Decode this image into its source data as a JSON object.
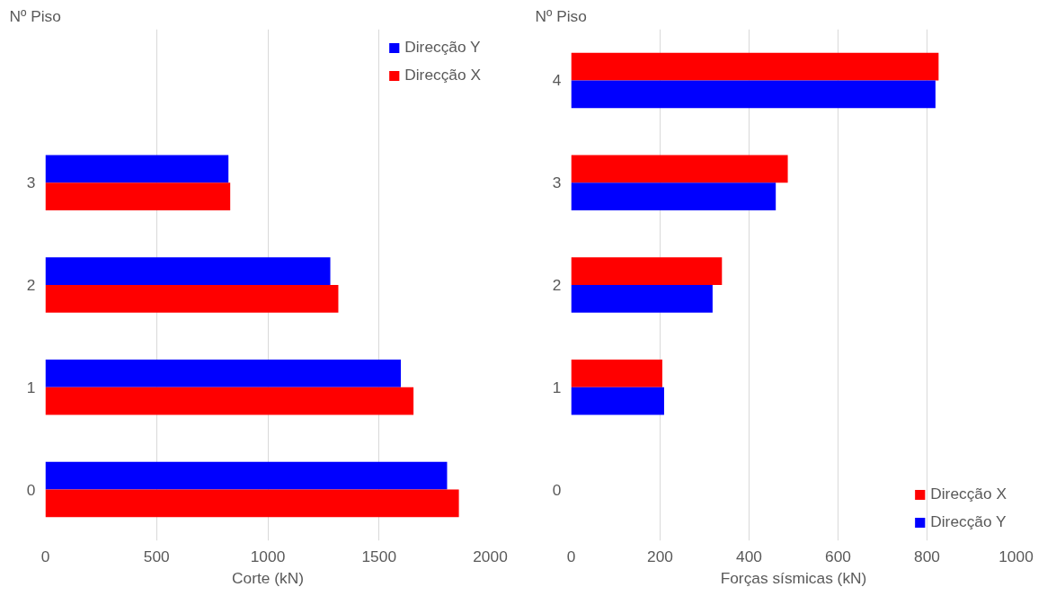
{
  "chart_data": [
    {
      "type": "bar",
      "orientation": "horizontal",
      "ylabel": "Nº Piso",
      "xlabel": "Corte (kN)",
      "categories": [
        null,
        "3",
        "2",
        "1",
        "0"
      ],
      "series": [
        {
          "name": "Direcção Y",
          "color": "#0000ff",
          "values": [
            null,
            823,
            1281,
            1598,
            1806
          ]
        },
        {
          "name": "Direcção X",
          "color": "#ff0000",
          "values": [
            null,
            831,
            1317,
            1655,
            1859
          ]
        }
      ],
      "xlim": [
        0,
        2000
      ],
      "xticks": [
        0,
        500,
        1000,
        1500,
        2000
      ],
      "grid": "x",
      "legend": "top right"
    },
    {
      "type": "bar",
      "orientation": "horizontal",
      "ylabel": "Nº Piso",
      "xlabel": "Forças sísmicas (kN)",
      "categories": [
        "4",
        "3",
        "2",
        "1",
        "0"
      ],
      "series": [
        {
          "name": "Direcção X",
          "color": "#ff0000",
          "values": [
            826,
            487,
            339,
            205,
            null
          ]
        },
        {
          "name": "Direcção Y",
          "color": "#0000ff",
          "values": [
            819,
            460,
            318,
            209,
            null
          ]
        }
      ],
      "xlim": [
        0,
        1000
      ],
      "xticks": [
        0,
        200,
        400,
        600,
        800,
        1000
      ],
      "grid": "x",
      "legend": "bottom right"
    }
  ]
}
